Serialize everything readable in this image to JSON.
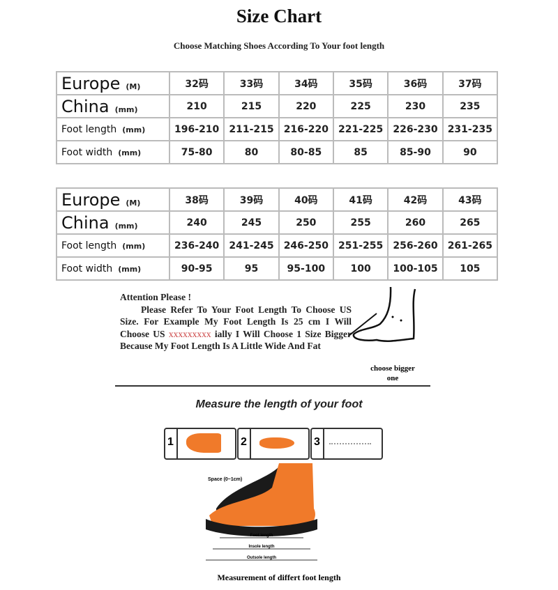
{
  "title": "Size Chart",
  "subtitle": "Choose Matching Shoes According To Your foot length",
  "tables": [
    {
      "rows": [
        {
          "label": "Europe",
          "unit": "(M)",
          "values": [
            "32码",
            "33码",
            "34码",
            "35码",
            "36码",
            "37码"
          ]
        },
        {
          "label": "China",
          "unit": "(mm)",
          "values": [
            "210",
            "215",
            "220",
            "225",
            "230",
            "235"
          ]
        },
        {
          "label": "Foot length",
          "unit": "(mm)",
          "values": [
            "196-210",
            "211-215",
            "216-220",
            "221-225",
            "226-230",
            "231-235"
          ]
        },
        {
          "label": "Foot width",
          "unit": "(mm)",
          "values": [
            "75-80",
            "80",
            "80-85",
            "85",
            "85-90",
            "90"
          ]
        }
      ]
    },
    {
      "rows": [
        {
          "label": "Europe",
          "unit": "(M)",
          "values": [
            "38码",
            "39码",
            "40码",
            "41码",
            "42码",
            "43码"
          ]
        },
        {
          "label": "China",
          "unit": "(mm)",
          "values": [
            "240",
            "245",
            "250",
            "255",
            "260",
            "265"
          ]
        },
        {
          "label": "Foot length",
          "unit": "(mm)",
          "values": [
            "236-240",
            "241-245",
            "246-250",
            "251-255",
            "256-260",
            "261-265"
          ]
        },
        {
          "label": "Foot width",
          "unit": "(mm)",
          "values": [
            "90-95",
            "95",
            "95-100",
            "100",
            "100-105",
            "105"
          ]
        }
      ]
    }
  ],
  "attention": {
    "heading": "Attention Please !",
    "text1": "Please Refer To Your Foot Length To Choose US Size. For Example My Foot Length Is 25 cm I Will Choose US ",
    "redacted": "xxxxxxxxx",
    "text2": " ially I Will Choose 1 Size Bigger Because My Foot Length Is A Little Wide And Fat",
    "choose": "choose bigger one"
  },
  "measure_title": "Measure the length of your foot",
  "steps": [
    "1",
    "2",
    "3"
  ],
  "space_label": "Space (0~1cm)",
  "lengths": [
    "Foot length",
    "Insole length",
    "Outsole length"
  ],
  "caption": "Measurement of differt foot length",
  "colors": {
    "foot": "#f07a2a",
    "shoe": "#1a1a1a"
  }
}
